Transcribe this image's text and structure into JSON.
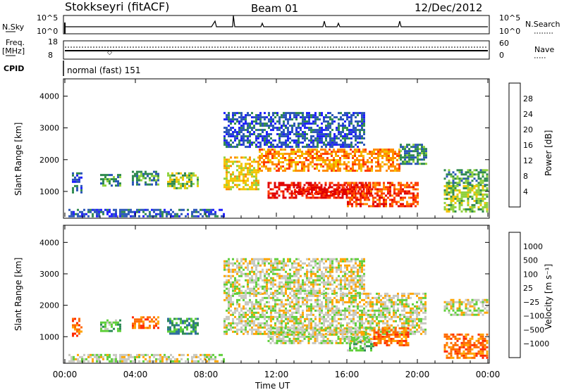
{
  "header": {
    "station": "Stokkseyri (fitACF)",
    "beam": "Beam 01",
    "date": "12/Dec/2012"
  },
  "top_panels": {
    "nsky_label": "N.Sky",
    "nsky_ticks": [
      "10^5",
      "10^0"
    ],
    "nsearch_label": "N.Search",
    "nsearch_ticks": [
      "10^5",
      "10^0"
    ],
    "freq_label": "Freq.",
    "freq_unit": "[MHz]",
    "freq_ticks": [
      "18",
      "8"
    ],
    "nave_label": "Nave",
    "nave_ticks": [
      "60",
      "0"
    ],
    "cpid_label": "CPID",
    "cpid_text": "normal (fast) 151"
  },
  "chart_data": [
    {
      "type": "heatmap",
      "name": "power-panel",
      "ylabel": "Slant Range [km]",
      "yticks": [
        1000,
        2000,
        3000,
        4000
      ],
      "ylim": [
        200,
        4500
      ],
      "xlim_hours": [
        0,
        24
      ],
      "colorbar_label": "Power [dB]",
      "colorbar_ticks": [
        "4",
        "8",
        "12",
        "16",
        "20",
        "24",
        "28"
      ],
      "colorbar_colors": [
        "#1e1eff",
        "#2a55b8",
        "#2f8a4e",
        "#8fd13d",
        "#f2c500",
        "#ff8c00",
        "#ff3a00",
        "#e00000"
      ],
      "regions": [
        {
          "t0": 0.2,
          "t1": 9.0,
          "r0": 200,
          "r1": 450,
          "level": 1
        },
        {
          "t0": 0.4,
          "t1": 0.9,
          "r0": 1000,
          "r1": 1600,
          "level": 1
        },
        {
          "t0": 2.0,
          "t1": 3.2,
          "r0": 1200,
          "r1": 1550,
          "level": 2
        },
        {
          "t0": 3.8,
          "t1": 5.3,
          "r0": 1250,
          "r1": 1650,
          "level": 2
        },
        {
          "t0": 5.8,
          "t1": 7.5,
          "r0": 1100,
          "r1": 1600,
          "level": 3
        },
        {
          "t0": 9.0,
          "t1": 11.0,
          "r0": 1100,
          "r1": 2100,
          "level": 4
        },
        {
          "t0": 11.0,
          "t1": 19.0,
          "r0": 1650,
          "r1": 2350,
          "level": 5
        },
        {
          "t0": 11.5,
          "t1": 17.5,
          "r0": 800,
          "r1": 1300,
          "level": 7
        },
        {
          "t0": 13.0,
          "t1": 16.0,
          "r0": 900,
          "r1": 1150,
          "level": 7
        },
        {
          "t0": 16.0,
          "t1": 20.0,
          "r0": 550,
          "r1": 1300,
          "level": 6
        },
        {
          "t0": 19.0,
          "t1": 20.5,
          "r0": 1900,
          "r1": 2500,
          "level": 2
        },
        {
          "t0": 9.0,
          "t1": 17.0,
          "r0": 2400,
          "r1": 3500,
          "level": 1
        },
        {
          "t0": 21.5,
          "t1": 24.0,
          "r0": 1200,
          "r1": 1700,
          "level": 2
        },
        {
          "t0": 21.5,
          "t1": 24.0,
          "r0": 350,
          "r1": 1200,
          "level": 3
        }
      ]
    },
    {
      "type": "heatmap",
      "name": "velocity-panel",
      "ylabel": "Slant Range [km]",
      "yticks": [
        1000,
        2000,
        3000,
        4000
      ],
      "ylim": [
        200,
        4500
      ],
      "xlim_hours": [
        0,
        24
      ],
      "xticks": [
        "00:00",
        "04:00",
        "08:00",
        "12:00",
        "16:00",
        "20:00",
        "00:00"
      ],
      "xlabel": "Time UT",
      "colorbar_label": "Velocity [m s⁻¹]",
      "colorbar_ticks": [
        "1000",
        "500",
        "100",
        "25",
        "−25",
        "−100",
        "−500",
        "−1000"
      ],
      "colorbar_colors": [
        "#2233cc",
        "#2f6fa0",
        "#2e8b57",
        "#5fcf3a",
        "#c8c8c0",
        "#ffa500",
        "#ff6a00",
        "#ff2a00",
        "#e60000"
      ],
      "regions": [
        {
          "t0": 0.2,
          "t1": 9.0,
          "r0": 200,
          "r1": 450,
          "level": 4
        },
        {
          "t0": 0.4,
          "t1": 0.9,
          "r0": 1000,
          "r1": 1600,
          "level": 6
        },
        {
          "t0": 2.0,
          "t1": 3.2,
          "r0": 1200,
          "r1": 1550,
          "level": 3
        },
        {
          "t0": 3.8,
          "t1": 5.3,
          "r0": 1250,
          "r1": 1650,
          "level": 6
        },
        {
          "t0": 5.8,
          "t1": 7.5,
          "r0": 1100,
          "r1": 1600,
          "level": 2
        },
        {
          "t0": 9.0,
          "t1": 20.5,
          "r0": 1100,
          "r1": 2400,
          "level": 4
        },
        {
          "t0": 11.5,
          "t1": 17.5,
          "r0": 800,
          "r1": 1300,
          "level": 4
        },
        {
          "t0": 9.0,
          "t1": 17.0,
          "r0": 2400,
          "r1": 3500,
          "level": 4
        },
        {
          "t0": 16.0,
          "t1": 17.5,
          "r0": 550,
          "r1": 1000,
          "level": 3
        },
        {
          "t0": 17.5,
          "t1": 19.5,
          "r0": 700,
          "r1": 1300,
          "level": 6
        },
        {
          "t0": 21.5,
          "t1": 24.0,
          "r0": 1700,
          "r1": 2200,
          "level": 4
        },
        {
          "t0": 21.5,
          "t1": 24.0,
          "r0": 350,
          "r1": 1100,
          "level": 6
        }
      ]
    }
  ]
}
